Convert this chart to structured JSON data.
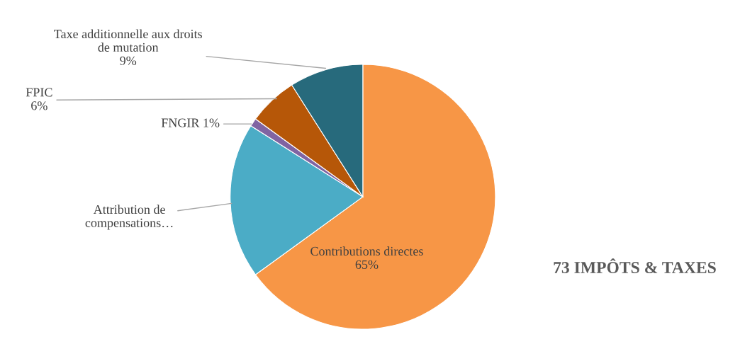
{
  "chart_data": {
    "type": "pie",
    "title": "73 IMPÔTS & TAXES",
    "categories": [
      "Contributions directes",
      "Attribution de\ncompensations…",
      "FNGIR",
      "FPIC",
      "Taxe additionnelle aux droits\nde mutation"
    ],
    "values": [
      65,
      19,
      1,
      6,
      9
    ],
    "value_labels": [
      "65%",
      null,
      "1%",
      "6%",
      "9%"
    ],
    "colors": [
      "#f79646",
      "#4bacc6",
      "#8064a2",
      "#b65708",
      "#276a7c"
    ]
  }
}
